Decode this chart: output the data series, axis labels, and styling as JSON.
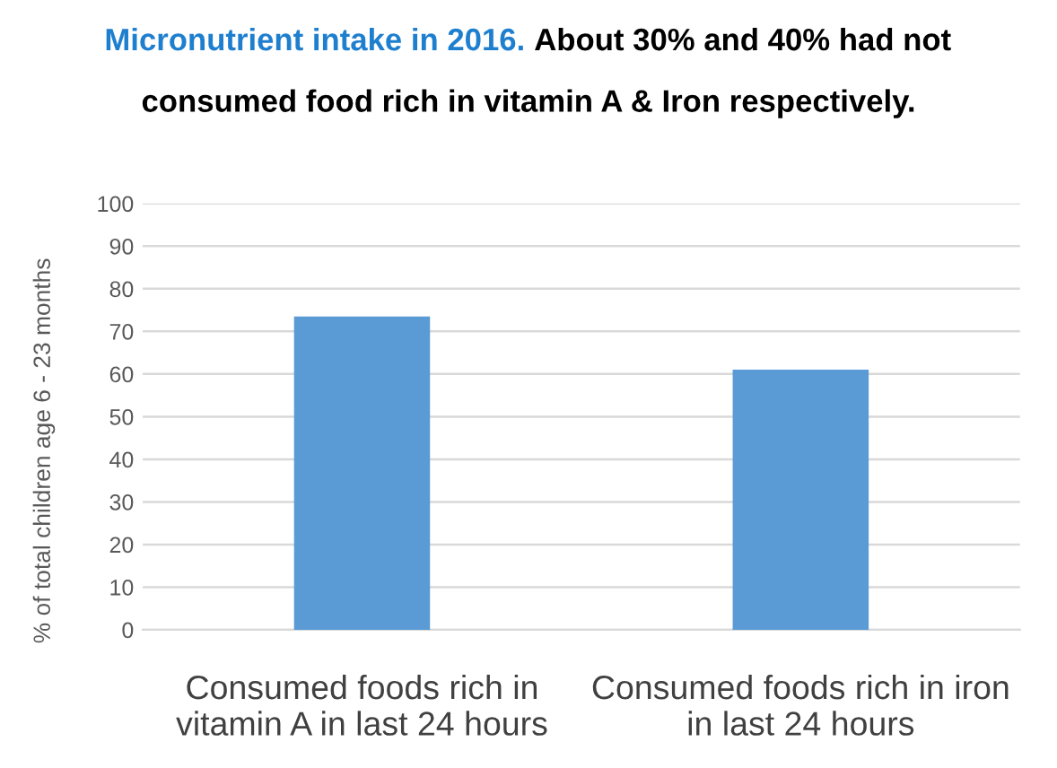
{
  "chart_data": {
    "type": "bar",
    "title": "Micronutrient intake in 2016.",
    "subtitle": "About 30% and 40% had not\nconsumed food rich in vitamin A & Iron respectively.",
    "ylabel": "% of total children age 6 - 23 months",
    "categories": [
      "Consumed foods rich in\nvitamin A in last 24 hours",
      "Consumed foods rich in iron\nin last 24 hours"
    ],
    "values": [
      73.5,
      61
    ],
    "color": "#5b9bd5",
    "ylim": [
      0,
      100
    ],
    "yticks": [
      0,
      10,
      20,
      30,
      40,
      50,
      60,
      70,
      80,
      90,
      100
    ],
    "grid": "y"
  }
}
